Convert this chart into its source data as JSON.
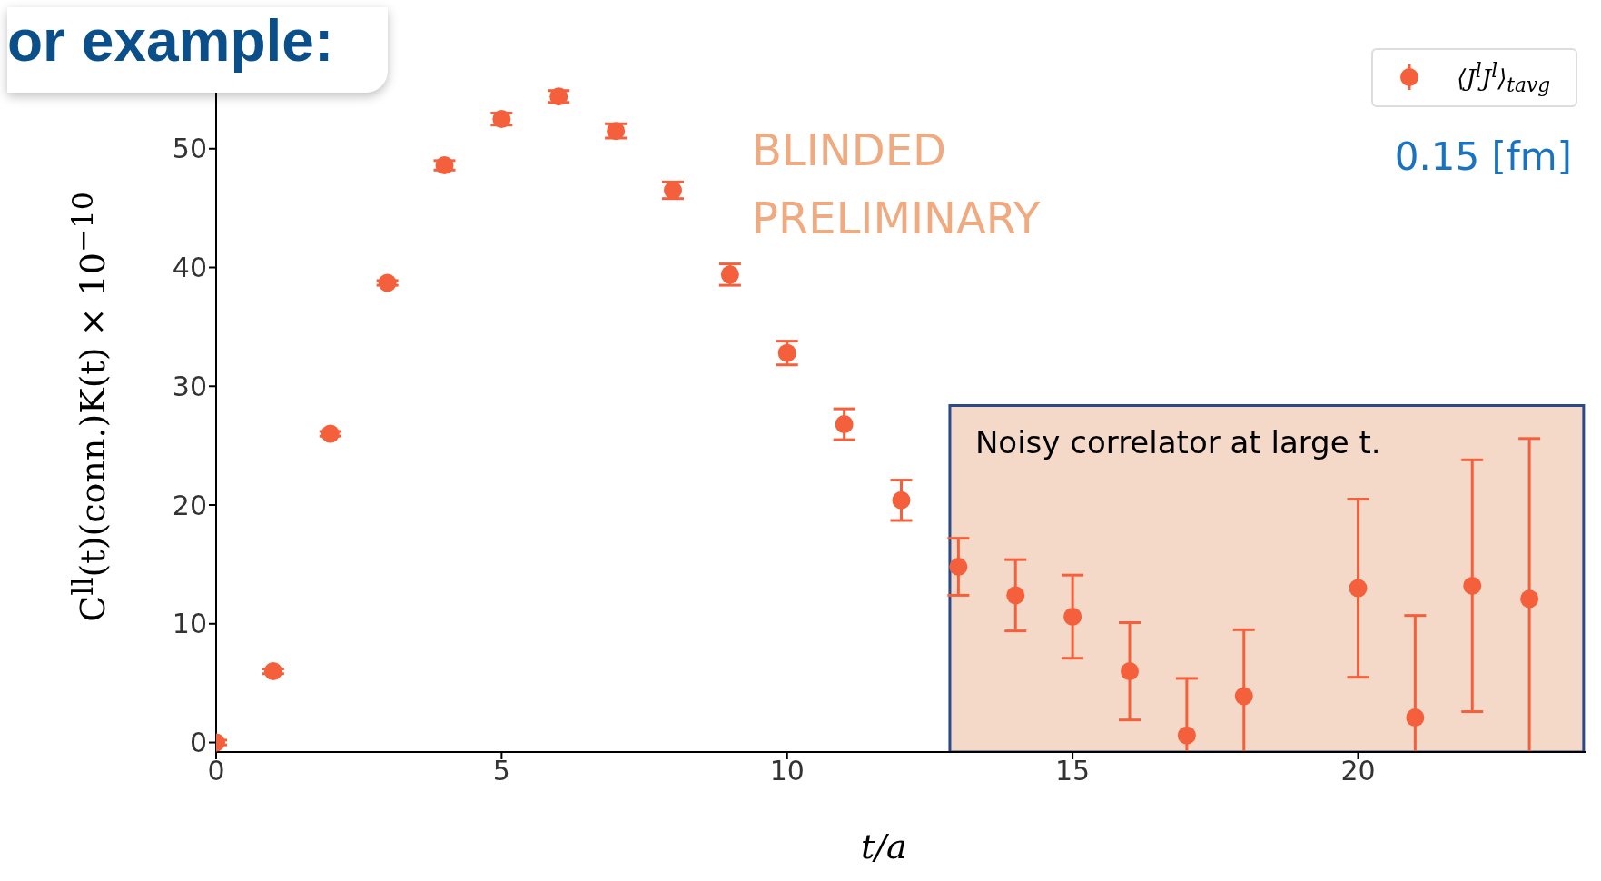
{
  "chart_data": {
    "type": "scatter",
    "xlabel": "t/a",
    "ylabel": "C$^{ll}$(t)(conn.)K(t) × 10$^{−10}$",
    "x": [
      0,
      1,
      2,
      3,
      4,
      5,
      6,
      7,
      8,
      9,
      10,
      11,
      12,
      13,
      14,
      15,
      16,
      17,
      18,
      19,
      20,
      21,
      22,
      23
    ],
    "series": [
      {
        "name": "⟨J$^{l}$J$^{l}$⟩$_{tavg}$",
        "color": "#f5603c",
        "values": [
          0,
          6.0,
          26.0,
          38.7,
          48.6,
          52.5,
          54.4,
          51.5,
          46.5,
          39.4,
          32.8,
          26.8,
          20.4,
          14.8,
          12.4,
          10.6,
          6.0,
          0.6,
          3.9,
          null,
          13.0,
          2.1,
          13.2,
          12.1
        ],
        "errors": [
          0.2,
          0.2,
          0.2,
          0.2,
          0.4,
          0.5,
          0.5,
          0.6,
          0.7,
          0.9,
          1.0,
          1.3,
          1.7,
          2.4,
          3.0,
          3.5,
          4.1,
          4.8,
          5.6,
          null,
          7.5,
          8.6,
          10.6,
          13.5
        ]
      }
    ],
    "xlim": [
      0,
      24
    ],
    "xticks": [
      0,
      5,
      10,
      15,
      20
    ],
    "ylim": [
      -0.8,
      60
    ],
    "yticks": [
      0,
      10,
      20,
      30,
      40,
      50
    ],
    "grid": false,
    "legend": "top right",
    "marker": "circle",
    "bands": [
      {
        "axis": "x",
        "from": 12.85,
        "to": 23.95,
        "label": "Noisy correlator at large t.",
        "color": "#f5d9c8"
      }
    ],
    "annotations": [
      "BLINDED PRELIMINARY",
      "0.15 [fm]",
      "or example:"
    ]
  }
}
